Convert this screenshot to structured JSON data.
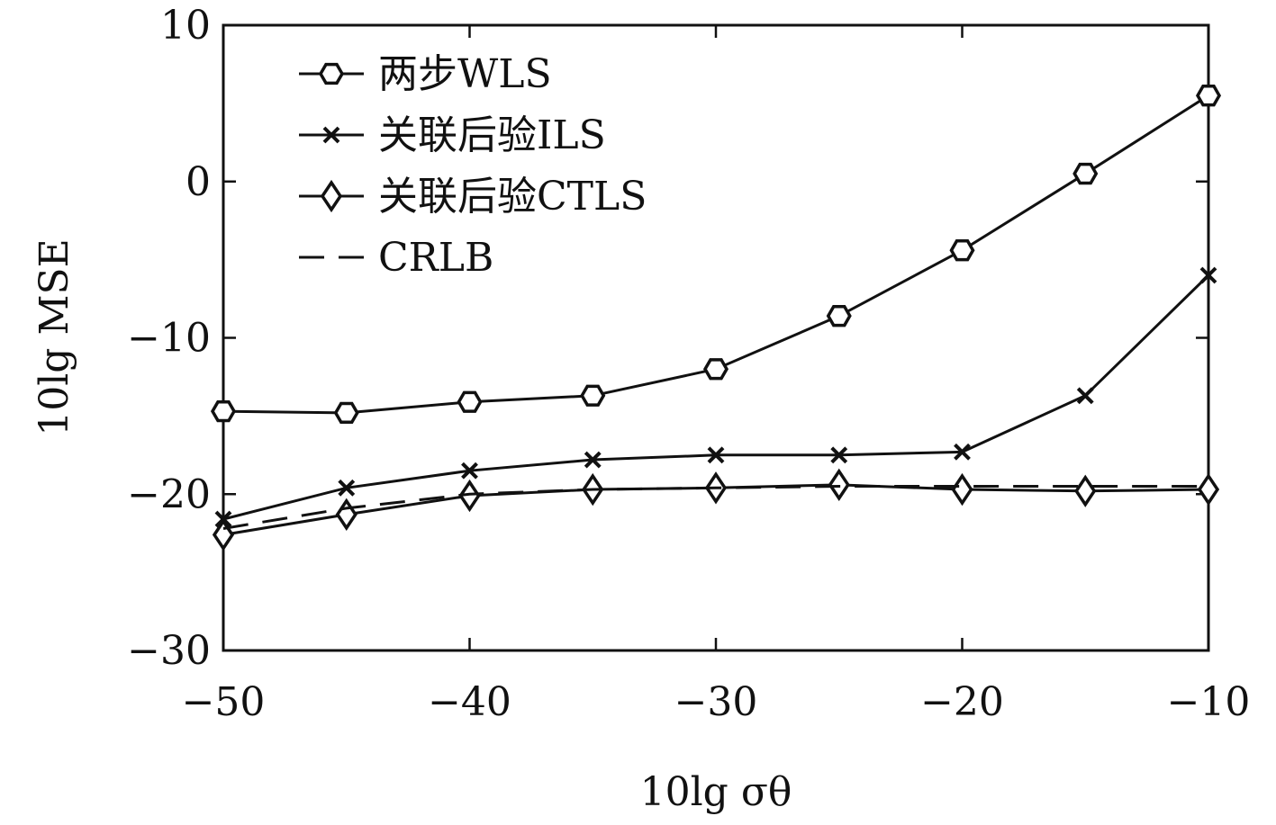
{
  "chart_data": {
    "type": "line",
    "xlabel": "10lg σθ",
    "ylabel": "10lg MSE",
    "xlim": [
      -50,
      -10
    ],
    "ylim": [
      -30,
      10
    ],
    "xticks": [
      -50,
      -40,
      -30,
      -20,
      -10
    ],
    "yticks": [
      10,
      0,
      -10,
      -20,
      -30
    ],
    "xtick_labels": [
      "−50",
      "−40",
      "−30",
      "−20",
      "−10"
    ],
    "ytick_labels": [
      "10",
      "0",
      "−10",
      "−20",
      "−30"
    ],
    "x": [
      -50,
      -45,
      -40,
      -35,
      -30,
      -25,
      -20,
      -15,
      -10
    ],
    "grid": false,
    "legend_position": "top-left",
    "series": [
      {
        "name": "两步WLS",
        "marker": "hexagon",
        "dash": "solid",
        "values": [
          -14.7,
          -14.8,
          -14.1,
          -13.7,
          -12.0,
          -8.6,
          -4.4,
          0.5,
          5.5
        ]
      },
      {
        "name": "关联后验ILS",
        "marker": "x",
        "dash": "solid",
        "values": [
          -21.6,
          -19.6,
          -18.5,
          -17.8,
          -17.5,
          -17.5,
          -17.3,
          -13.7,
          -6.0
        ]
      },
      {
        "name": "关联后验CTLS",
        "marker": "diamond",
        "dash": "solid",
        "values": [
          -22.6,
          -21.3,
          -20.1,
          -19.7,
          -19.6,
          -19.4,
          -19.7,
          -19.8,
          -19.7
        ]
      },
      {
        "name": "CRLB",
        "marker": "none",
        "dash": "dashed",
        "values": [
          -22.2,
          -20.9,
          -20.0,
          -19.7,
          -19.6,
          -19.5,
          -19.5,
          -19.5,
          -19.5
        ]
      }
    ]
  }
}
